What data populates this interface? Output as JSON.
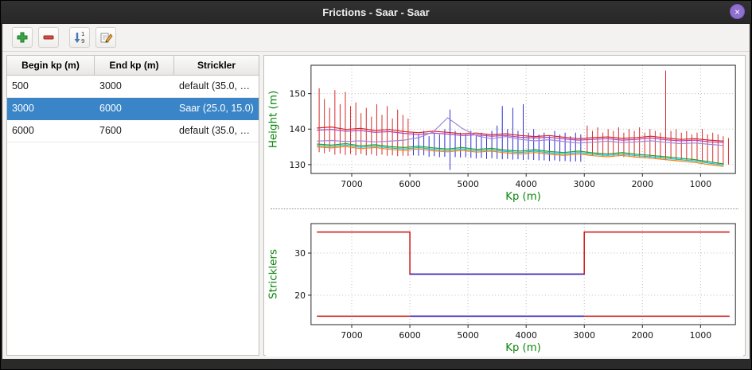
{
  "window": {
    "title": "Frictions - Saar - Saar",
    "close_glyph": "×"
  },
  "toolbar": {
    "icons": [
      "plus-icon",
      "minus-icon",
      "sort-numeric-icon",
      "edit-icon"
    ]
  },
  "table": {
    "columns": [
      "Begin kp (m)",
      "End kp (m)",
      "Strickler"
    ],
    "column_ids": [
      "begin-kp",
      "end-kp",
      "strickler"
    ],
    "rows": [
      [
        "500",
        "3000",
        "default (35.0, …"
      ],
      [
        "3000",
        "6000",
        "Saar (25.0, 15.0)"
      ],
      [
        "6000",
        "7600",
        "default (35.0, …"
      ]
    ],
    "selected_row": 1
  },
  "colors": {
    "selection": "#3a85c8",
    "axis_label_green": "#0b870b",
    "default_zone_red": "#d62728",
    "saar_zone_blue": "#2a2ad0"
  },
  "chart_data": [
    {
      "type": "line",
      "title": "",
      "xlabel": "Kp (m)",
      "ylabel": "Height (m)",
      "xlim": [
        7700,
        400
      ],
      "ylim": [
        127.5,
        158
      ],
      "x_ticks": [
        7000,
        6000,
        5000,
        4000,
        3000,
        2000,
        1000
      ],
      "y_ticks": [
        130,
        140,
        150
      ],
      "grid": true,
      "x": [
        7600,
        7350,
        7100,
        6850,
        6600,
        6350,
        6100,
        5850,
        5600,
        5350,
        5100,
        4850,
        4600,
        4350,
        4100,
        3850,
        3600,
        3350,
        3100,
        2850,
        2600,
        2350,
        2100,
        1850,
        1600,
        1350,
        1100,
        850,
        600
      ],
      "series": [
        {
          "name": "profile-red",
          "color": "#d62728",
          "y": [
            140.3,
            140.6,
            139.9,
            140.2,
            139.6,
            139.9,
            139.3,
            139.0,
            139.4,
            139.1,
            138.7,
            138.9,
            138.4,
            138.7,
            138.2,
            137.9,
            138.2,
            137.7,
            137.3,
            137.6,
            137.8,
            137.4,
            137.6,
            138.0,
            137.5,
            137.1,
            137.3,
            136.9,
            136.6
          ]
        },
        {
          "name": "profile-magenta",
          "color": "#b542b5",
          "y": [
            139.7,
            139.9,
            139.4,
            139.6,
            139.1,
            139.3,
            138.8,
            138.5,
            138.9,
            138.6,
            138.2,
            138.4,
            138.0,
            138.2,
            137.7,
            137.5,
            137.7,
            137.2,
            136.9,
            137.1,
            137.3,
            136.9,
            137.1,
            137.5,
            137.0,
            136.7,
            136.9,
            136.4,
            136.2
          ]
        },
        {
          "name": "profile-lavender",
          "color": "#9e86d8",
          "y": [
            136.6,
            136.8,
            136.5,
            136.7,
            136.4,
            136.6,
            136.9,
            137.6,
            139.2,
            143.2,
            140.2,
            138.1,
            137.3,
            137.9,
            137.1,
            136.7,
            137.0,
            136.5,
            136.1,
            136.3,
            136.6,
            136.2,
            136.4,
            136.7,
            136.3,
            135.9,
            136.1,
            135.7,
            135.4
          ]
        },
        {
          "name": "profile-cyan",
          "color": "#17becf",
          "y": [
            135.4,
            135.1,
            135.5,
            134.9,
            135.2,
            134.7,
            134.4,
            134.8,
            134.3,
            134.0,
            134.4,
            133.9,
            134.2,
            133.7,
            133.4,
            133.8,
            133.3,
            133.0,
            133.4,
            132.9,
            132.6,
            133.0,
            132.5,
            132.2,
            131.8,
            131.4,
            131.0,
            130.4,
            129.9
          ]
        },
        {
          "name": "profile-green",
          "color": "#2ca02c",
          "y": [
            135.8,
            135.5,
            135.9,
            135.3,
            135.6,
            135.1,
            134.8,
            135.2,
            134.7,
            134.4,
            134.8,
            134.3,
            134.6,
            134.1,
            133.8,
            134.2,
            133.7,
            133.4,
            133.8,
            133.3,
            133.0,
            133.4,
            132.9,
            132.6,
            132.2,
            131.8,
            131.4,
            130.8,
            130.2
          ]
        },
        {
          "name": "profile-orange",
          "color": "#ff7f0e",
          "y": [
            135.0,
            134.7,
            135.1,
            134.5,
            134.8,
            134.3,
            134.0,
            134.4,
            133.9,
            133.6,
            134.0,
            133.5,
            133.8,
            133.3,
            133.0,
            133.4,
            132.9,
            132.6,
            133.0,
            132.5,
            132.2,
            132.6,
            132.1,
            131.8,
            131.4,
            131.0,
            130.6,
            130.0,
            129.5
          ]
        }
      ],
      "vline_groups": [
        {
          "name": "cross-sections-default-zones",
          "color": "#d62728",
          "bars": [
            [
              7560,
              133.5,
              151.5
            ],
            [
              7470,
              133.2,
              148.5
            ],
            [
              7380,
              133.6,
              146.0
            ],
            [
              7290,
              132.8,
              151.0
            ],
            [
              7200,
              133.1,
              147.0
            ],
            [
              7110,
              132.7,
              150.5
            ],
            [
              7020,
              133.0,
              146.5
            ],
            [
              6930,
              132.6,
              147.5
            ],
            [
              6840,
              133.0,
              144.5
            ],
            [
              6750,
              132.6,
              146.0
            ],
            [
              6660,
              132.9,
              143.5
            ],
            [
              6570,
              132.5,
              147.0
            ],
            [
              6480,
              132.8,
              144.0
            ],
            [
              6390,
              132.5,
              146.5
            ],
            [
              6300,
              132.6,
              143.0
            ],
            [
              6210,
              132.4,
              145.5
            ],
            [
              6120,
              132.5,
              144.0
            ],
            [
              6030,
              132.4,
              143.0
            ],
            [
              2950,
              132.9,
              141.0
            ],
            [
              2860,
              132.6,
              139.5
            ],
            [
              2770,
              132.7,
              140.5
            ],
            [
              2680,
              132.3,
              139.0
            ],
            [
              2590,
              132.5,
              140.0
            ],
            [
              2500,
              132.2,
              139.5
            ],
            [
              2410,
              132.4,
              140.5
            ],
            [
              2320,
              132.1,
              139.0
            ],
            [
              2230,
              132.2,
              140.0
            ],
            [
              2140,
              132.0,
              139.5
            ],
            [
              2050,
              132.1,
              140.5
            ],
            [
              1960,
              131.8,
              139.0
            ],
            [
              1870,
              131.9,
              140.0
            ],
            [
              1780,
              131.6,
              139.5
            ],
            [
              1690,
              131.6,
              139.0
            ],
            [
              1600,
              131.2,
              156.5
            ],
            [
              1510,
              131.5,
              139.5
            ],
            [
              1420,
              131.2,
              140.0
            ],
            [
              1330,
              131.4,
              139.0
            ],
            [
              1240,
              131.1,
              139.5
            ],
            [
              1150,
              131.2,
              138.5
            ],
            [
              1060,
              131.0,
              139.0
            ],
            [
              970,
              130.7,
              140.0
            ],
            [
              880,
              130.6,
              138.5
            ],
            [
              790,
              130.5,
              139.0
            ],
            [
              700,
              130.2,
              138.5
            ],
            [
              610,
              130.1,
              138.0
            ],
            [
              520,
              130.0,
              137.5
            ]
          ]
        },
        {
          "name": "cross-sections-saar-zone",
          "color": "#2a2ad0",
          "bars": [
            [
              5940,
              132.6,
              139.0
            ],
            [
              5850,
              132.5,
              138.5
            ],
            [
              5760,
              132.6,
              139.5
            ],
            [
              5670,
              132.2,
              138.0
            ],
            [
              5580,
              132.4,
              139.0
            ],
            [
              5490,
              132.1,
              138.5
            ],
            [
              5400,
              132.2,
              140.0
            ],
            [
              5310,
              128.5,
              145.5
            ],
            [
              5220,
              132.1,
              139.5
            ],
            [
              5130,
              132.0,
              139.0
            ],
            [
              5040,
              132.1,
              138.5
            ],
            [
              4950,
              131.9,
              139.5
            ],
            [
              4860,
              131.7,
              138.0
            ],
            [
              4770,
              131.9,
              139.0
            ],
            [
              4680,
              131.6,
              138.5
            ],
            [
              4590,
              131.8,
              139.5
            ],
            [
              4500,
              131.6,
              141.0
            ],
            [
              4410,
              131.5,
              146.5
            ],
            [
              4320,
              131.6,
              140.0
            ],
            [
              4230,
              131.4,
              146.0
            ],
            [
              4140,
              131.5,
              139.5
            ],
            [
              4050,
              131.3,
              147.0
            ],
            [
              3960,
              131.4,
              139.0
            ],
            [
              3870,
              131.3,
              140.0
            ],
            [
              3780,
              131.2,
              138.5
            ],
            [
              3690,
              131.2,
              139.0
            ],
            [
              3600,
              131.0,
              138.0
            ],
            [
              3510,
              131.2,
              139.5
            ],
            [
              3420,
              130.9,
              138.5
            ],
            [
              3330,
              131.0,
              139.0
            ],
            [
              3240,
              130.8,
              138.0
            ],
            [
              3150,
              130.9,
              139.0
            ],
            [
              3060,
              130.8,
              138.5
            ]
          ]
        }
      ]
    },
    {
      "type": "step",
      "title": "",
      "xlabel": "Kp (m)",
      "ylabel": "Stricklers",
      "xlim": [
        7700,
        400
      ],
      "ylim": [
        13,
        37
      ],
      "x_ticks": [
        7000,
        6000,
        5000,
        4000,
        3000,
        2000,
        1000
      ],
      "y_ticks": [
        20,
        30
      ],
      "grid": true,
      "lines": [
        {
          "name": "minor-bed-default-35",
          "color": "#cc1111",
          "points": [
            [
              7600,
              35
            ],
            [
              6000,
              35
            ],
            [
              6000,
              25
            ],
            [
              3000,
              25
            ],
            [
              3000,
              35
            ],
            [
              500,
              35
            ]
          ]
        },
        {
          "name": "major-bed-default-15",
          "color": "#cc1111",
          "points": [
            [
              7600,
              15
            ],
            [
              500,
              15
            ]
          ]
        },
        {
          "name": "minor-bed-saar-25",
          "color": "#2a2ad0",
          "points": [
            [
              6000,
              25
            ],
            [
              3000,
              25
            ]
          ]
        },
        {
          "name": "major-bed-saar-15",
          "color": "#2a2ad0",
          "points": [
            [
              6000,
              15
            ],
            [
              3000,
              15
            ]
          ]
        }
      ]
    }
  ]
}
